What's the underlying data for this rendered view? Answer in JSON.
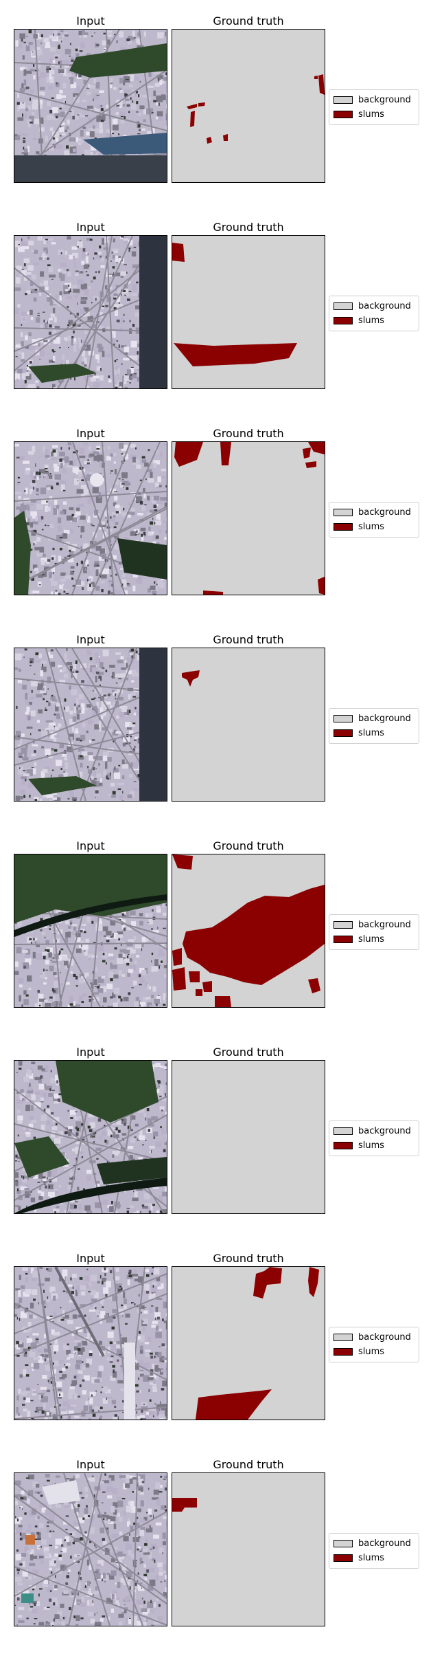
{
  "titles": {
    "input": "Input",
    "ground_truth": "Ground truth"
  },
  "legend": [
    {
      "label": "background",
      "color": "#d3d3d3"
    },
    {
      "label": "slums",
      "color": "#8b0000"
    }
  ],
  "colors": {
    "background": "#d3d3d3",
    "slums": "#8b0000"
  },
  "rows": [
    {
      "input_style": "urban-top-vegetation-band-bottom-nodata",
      "slum_fraction": 0.03
    },
    {
      "input_style": "dense-urban-right-nodata-strip",
      "slum_fraction": 0.07
    },
    {
      "input_style": "urban-roundabout-vegetation-left",
      "slum_fraction": 0.05
    },
    {
      "input_style": "dense-urban-right-nodata-strip",
      "slum_fraction": 0.01
    },
    {
      "input_style": "vegetation-river-top-urban-bottom",
      "slum_fraction": 0.2
    },
    {
      "input_style": "mixed-vegetation-urban-river",
      "slum_fraction": 0.0
    },
    {
      "input_style": "dense-urban-roads",
      "slum_fraction": 0.06
    },
    {
      "input_style": "dense-urban-colorful",
      "slum_fraction": 0.01
    }
  ]
}
